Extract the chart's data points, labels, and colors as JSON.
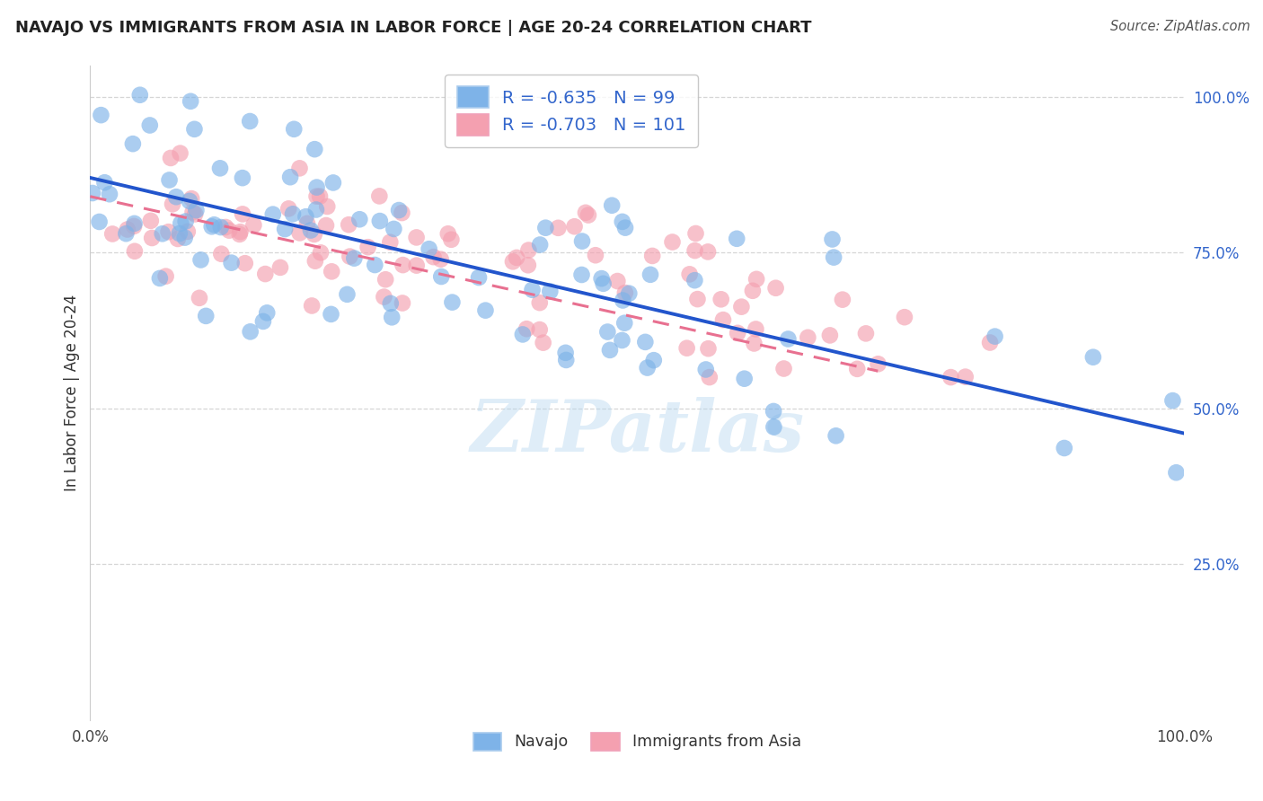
{
  "title": "NAVAJO VS IMMIGRANTS FROM ASIA IN LABOR FORCE | AGE 20-24 CORRELATION CHART",
  "source": "Source: ZipAtlas.com",
  "ylabel": "In Labor Force | Age 20-24",
  "watermark": "ZIPatlas",
  "legend_navajo_r": "-0.635",
  "legend_navajo_n": "99",
  "legend_asia_r": "-0.703",
  "legend_asia_n": "101",
  "navajo_color": "#7eb3e8",
  "asia_color": "#f4a0b0",
  "navajo_line_color": "#2255cc",
  "asia_line_color": "#e87090",
  "text_blue_color": "#3366cc",
  "background_color": "#ffffff",
  "grid_color": "#cccccc",
  "navajo_seed": 77,
  "asia_seed": 55
}
